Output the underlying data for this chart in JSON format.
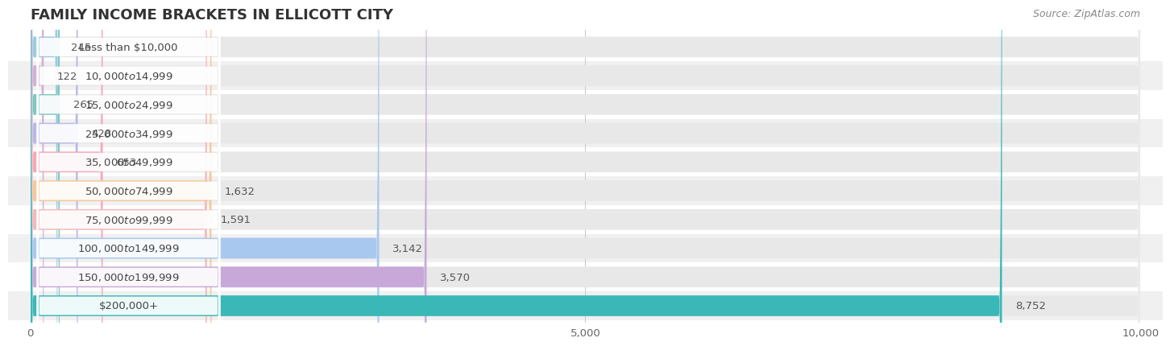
{
  "title": "FAMILY INCOME BRACKETS IN ELLICOTT CITY",
  "source": "Source: ZipAtlas.com",
  "categories": [
    "Less than $10,000",
    "$10,000 to $14,999",
    "$15,000 to $24,999",
    "$25,000 to $34,999",
    "$35,000 to $49,999",
    "$50,000 to $74,999",
    "$75,000 to $99,999",
    "$100,000 to $149,999",
    "$150,000 to $199,999",
    "$200,000+"
  ],
  "values": [
    245,
    122,
    265,
    428,
    653,
    1632,
    1591,
    3142,
    3570,
    8752
  ],
  "bar_colors": [
    "#9ecae1",
    "#d4b0d4",
    "#7ec8c0",
    "#b8b8e8",
    "#f5a8b8",
    "#f5c898",
    "#f5b8b8",
    "#a8c8f0",
    "#c8a8d8",
    "#3ab8b8"
  ],
  "value_labels": [
    "245",
    "122",
    "265",
    "428",
    "653",
    "1,632",
    "1,591",
    "3,142",
    "3,570",
    "8,752"
  ],
  "xlim": [
    0,
    10000
  ],
  "xticks": [
    0,
    5000,
    10000
  ],
  "xtick_labels": [
    "0",
    "5,000",
    "10,000"
  ],
  "row_colors": [
    "#ffffff",
    "#f0f0f0"
  ],
  "bar_bg_color": "#e0e0e0",
  "title_fontsize": 13,
  "label_fontsize": 9.5,
  "value_fontsize": 9.5,
  "source_fontsize": 9
}
